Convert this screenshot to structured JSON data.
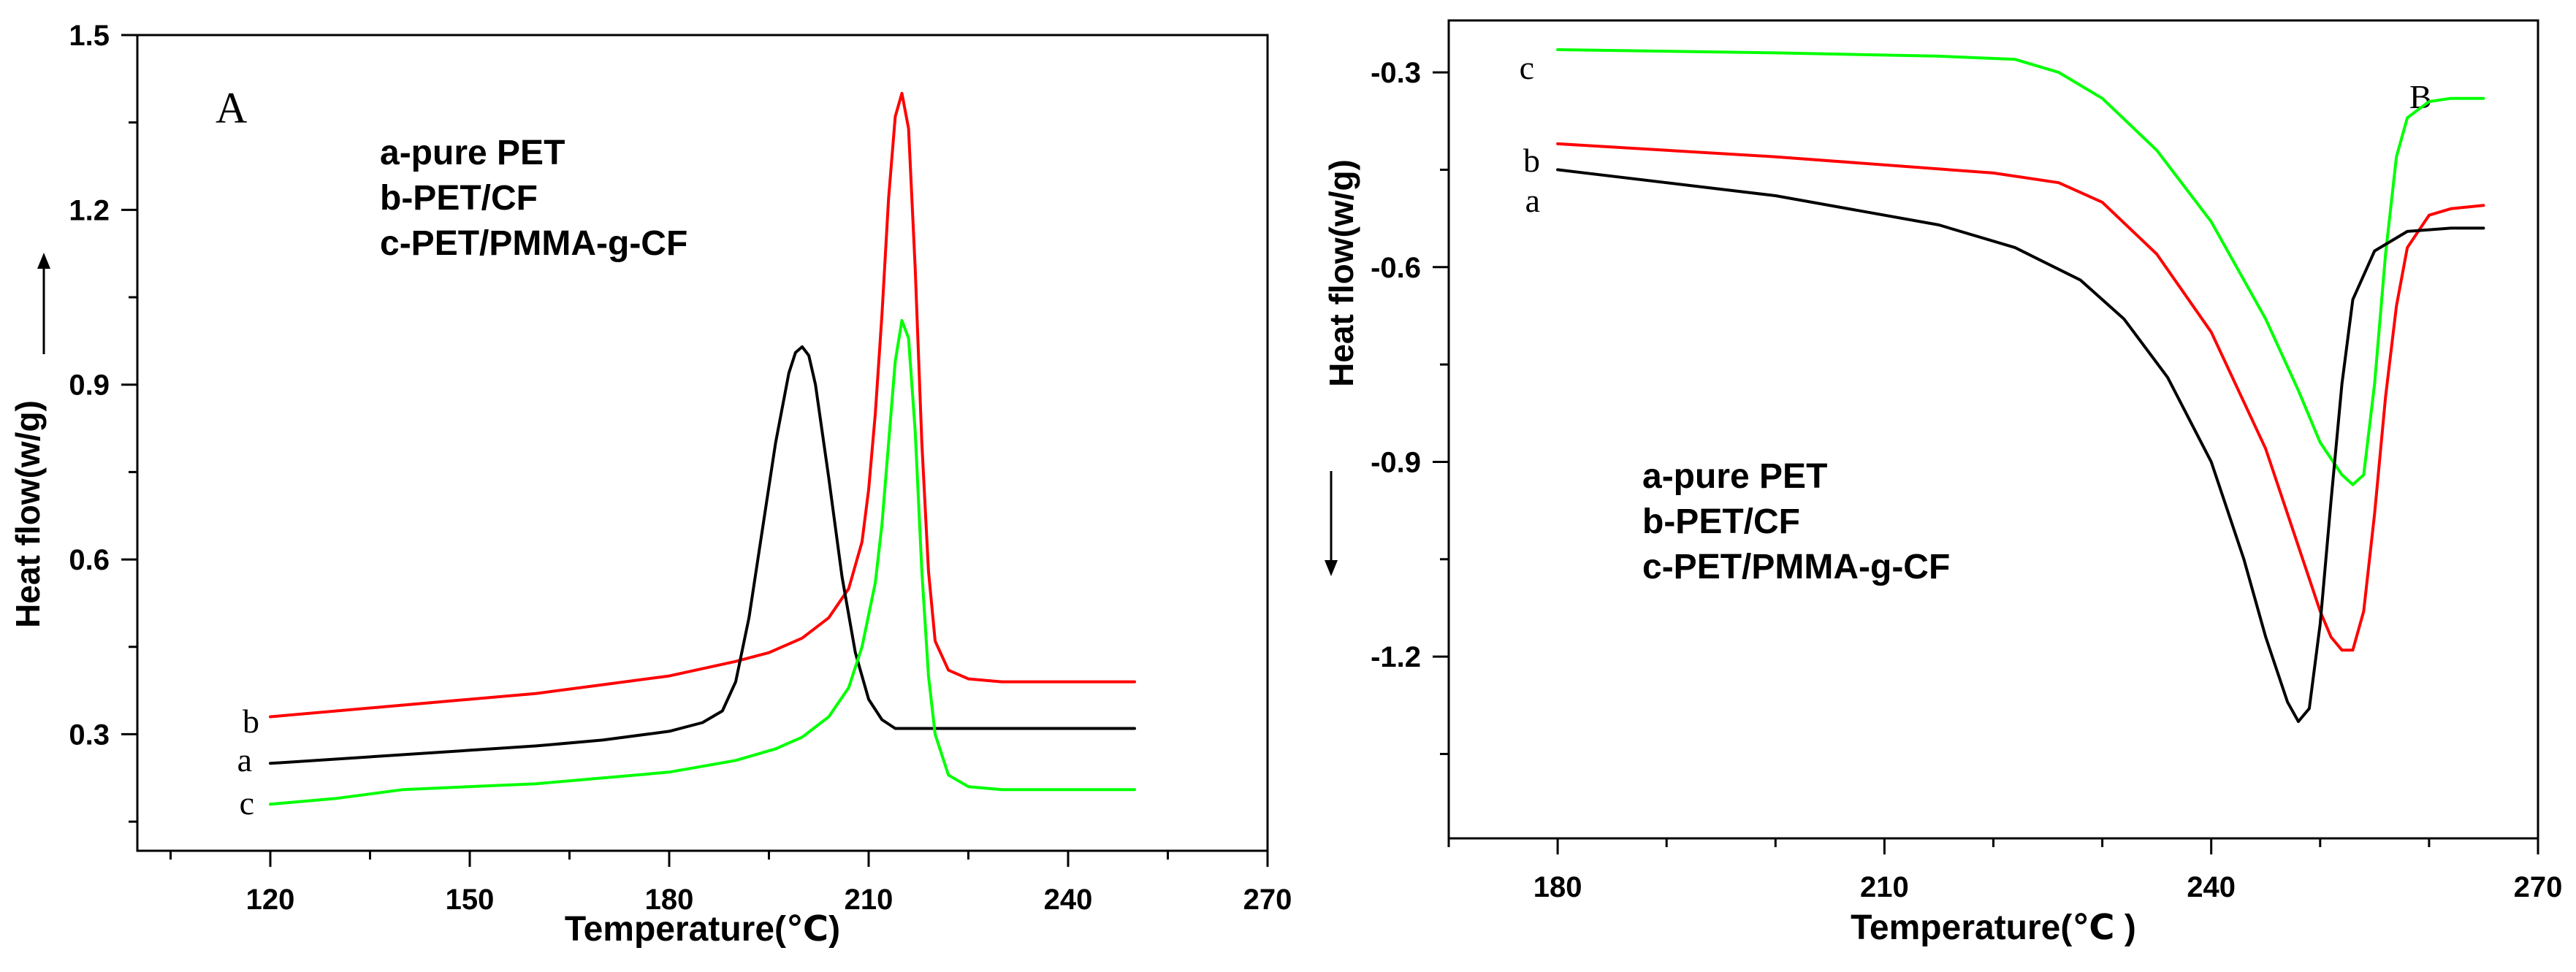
{
  "chart_data": [
    {
      "type": "line",
      "panel": "A",
      "panel_label": "A",
      "xlabel": "Temperature(℃)",
      "ylabel": "Heat flow(w/g)",
      "xlim": [
        100,
        270
      ],
      "ylim": [
        0.1,
        1.5
      ],
      "xticks": [
        120,
        150,
        180,
        210,
        240,
        270
      ],
      "yticks": [
        0.3,
        0.6,
        0.9,
        1.2,
        1.5
      ],
      "y_tick_labels": [
        "0.3",
        "0.6",
        "0.9",
        "1.2",
        "1.5"
      ],
      "y_arrow": "up",
      "legend_position": "top-left",
      "legend": [
        "a-pure PET",
        "b-PET/CF",
        "c-PET/PMMA-g-CF"
      ],
      "series": [
        {
          "name": "b",
          "label": "b",
          "color": "#ff0000",
          "x": [
            120,
            140,
            160,
            170,
            180,
            190,
            195,
            200,
            204,
            207,
            209,
            210,
            211,
            212,
            213,
            214,
            215,
            216,
            217,
            218,
            219,
            220,
            222,
            225,
            230,
            250
          ],
          "y": [
            0.33,
            0.35,
            0.37,
            0.385,
            0.4,
            0.425,
            0.44,
            0.465,
            0.5,
            0.55,
            0.63,
            0.72,
            0.85,
            1.02,
            1.22,
            1.36,
            1.4,
            1.34,
            1.1,
            0.8,
            0.58,
            0.46,
            0.41,
            0.395,
            0.39,
            0.39
          ]
        },
        {
          "name": "a",
          "label": "a",
          "color": "#000000",
          "x": [
            120,
            140,
            160,
            170,
            180,
            185,
            188,
            190,
            192,
            194,
            196,
            198,
            199,
            200,
            201,
            202,
            204,
            206,
            208,
            210,
            212,
            214,
            216,
            220,
            230,
            250
          ],
          "y": [
            0.25,
            0.265,
            0.28,
            0.29,
            0.305,
            0.32,
            0.34,
            0.39,
            0.5,
            0.65,
            0.8,
            0.92,
            0.955,
            0.965,
            0.95,
            0.9,
            0.74,
            0.57,
            0.44,
            0.36,
            0.325,
            0.31,
            0.31,
            0.31,
            0.31,
            0.31
          ]
        },
        {
          "name": "c",
          "label": "c",
          "color": "#00ff00",
          "x": [
            120,
            130,
            140,
            160,
            180,
            190,
            196,
            200,
            204,
            207,
            209,
            211,
            212,
            213,
            214,
            215,
            216,
            217,
            218,
            219,
            220,
            222,
            225,
            230,
            250
          ],
          "y": [
            0.18,
            0.19,
            0.205,
            0.215,
            0.235,
            0.255,
            0.275,
            0.295,
            0.33,
            0.38,
            0.45,
            0.56,
            0.66,
            0.8,
            0.94,
            1.01,
            0.98,
            0.82,
            0.58,
            0.4,
            0.3,
            0.23,
            0.21,
            0.205,
            0.205
          ]
        }
      ]
    },
    {
      "type": "line",
      "panel": "B",
      "panel_label": "B",
      "xlabel": "Temperature(℃ )",
      "ylabel": "Heat flow(w/g)",
      "xlim": [
        170,
        270
      ],
      "ylim": [
        -1.48,
        -0.22
      ],
      "xticks": [
        180,
        210,
        240,
        270
      ],
      "yticks": [
        -0.3,
        -0.6,
        -0.9,
        -1.2
      ],
      "y_tick_labels": [
        "-0.3",
        "-0.6",
        "-0.9",
        "-1.2"
      ],
      "y_arrow": "down",
      "legend_position": "center",
      "legend": [
        "a-pure PET",
        "b-PET/CF",
        "c-PET/PMMA-g-CF"
      ],
      "series": [
        {
          "name": "c",
          "label": "c",
          "color": "#00ff00",
          "x": [
            180,
            200,
            215,
            222,
            226,
            230,
            235,
            240,
            245,
            248,
            250,
            252,
            253,
            254,
            255,
            256,
            257,
            258,
            260,
            262,
            265
          ],
          "y": [
            -0.265,
            -0.27,
            -0.275,
            -0.28,
            -0.3,
            -0.34,
            -0.42,
            -0.53,
            -0.68,
            -0.79,
            -0.87,
            -0.92,
            -0.935,
            -0.92,
            -0.78,
            -0.58,
            -0.43,
            -0.37,
            -0.345,
            -0.34,
            -0.34
          ]
        },
        {
          "name": "b",
          "label": "b",
          "color": "#ff0000",
          "x": [
            180,
            200,
            220,
            226,
            230,
            235,
            240,
            245,
            248,
            250,
            251,
            252,
            253,
            254,
            255,
            256,
            257,
            258,
            260,
            262,
            265
          ],
          "y": [
            -0.41,
            -0.43,
            -0.455,
            -0.47,
            -0.5,
            -0.58,
            -0.7,
            -0.88,
            -1.03,
            -1.13,
            -1.17,
            -1.19,
            -1.19,
            -1.13,
            -0.98,
            -0.8,
            -0.66,
            -0.57,
            -0.52,
            -0.51,
            -0.505
          ]
        },
        {
          "name": "a",
          "label": "a",
          "color": "#000000",
          "x": [
            180,
            200,
            215,
            222,
            228,
            232,
            236,
            240,
            243,
            245,
            247,
            248,
            249,
            250,
            251,
            252,
            253,
            255,
            258,
            262,
            265
          ],
          "y": [
            -0.45,
            -0.49,
            -0.535,
            -0.57,
            -0.62,
            -0.68,
            -0.77,
            -0.9,
            -1.05,
            -1.17,
            -1.27,
            -1.3,
            -1.28,
            -1.15,
            -0.96,
            -0.78,
            -0.65,
            -0.575,
            -0.545,
            -0.54,
            -0.54
          ]
        }
      ]
    }
  ]
}
